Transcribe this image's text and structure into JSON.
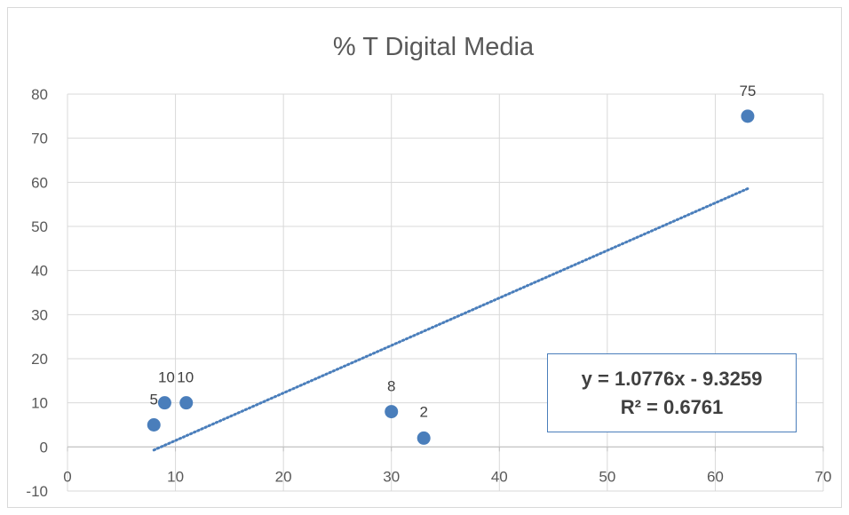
{
  "chart_data": {
    "type": "scatter",
    "title": "% T Digital Media",
    "xlabel": "",
    "ylabel": "",
    "xlim": [
      0,
      70
    ],
    "ylim": [
      -10,
      80
    ],
    "x_ticks": [
      0,
      10,
      20,
      30,
      40,
      50,
      60,
      70
    ],
    "y_ticks": [
      -10,
      0,
      10,
      20,
      30,
      40,
      50,
      60,
      70,
      80
    ],
    "grid": true,
    "legend": "none",
    "series": [
      {
        "color": "#4a7ebb",
        "points": [
          {
            "x": 8,
            "y": 5,
            "label": "5"
          },
          {
            "x": 9,
            "y": 10,
            "label": "10"
          },
          {
            "x": 11,
            "y": 10,
            "label": "10"
          },
          {
            "x": 30,
            "y": 8,
            "label": "8"
          },
          {
            "x": 33,
            "y": 2,
            "label": "2"
          },
          {
            "x": 63,
            "y": 75,
            "label": "75"
          }
        ]
      }
    ],
    "trendline": {
      "type": "linear",
      "slope": 1.0776,
      "intercept": -9.3259,
      "x_range": [
        8,
        63
      ],
      "style": "dotted",
      "color": "#4a7ebb",
      "equation_label": "y = 1.0776x - 9.3259",
      "r2_label": "R² = 0.6761"
    }
  }
}
